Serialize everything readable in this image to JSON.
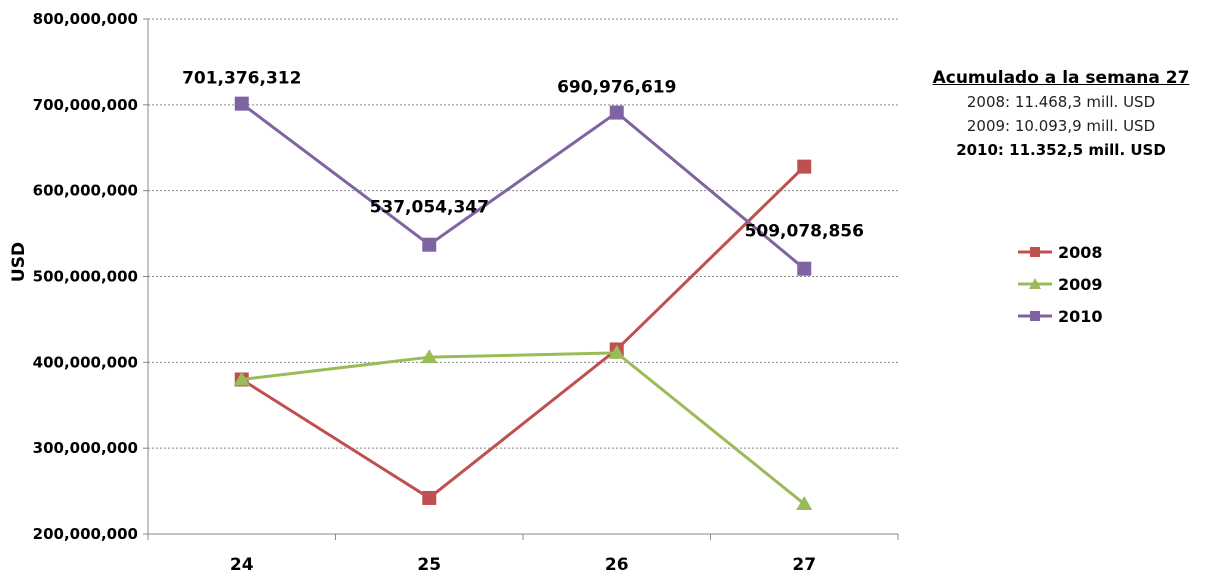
{
  "chart_data": {
    "type": "line",
    "title": "",
    "xlabel": "",
    "ylabel": "USD",
    "categories": [
      "24",
      "25",
      "26",
      "27"
    ],
    "ylim": [
      200000000,
      800000000
    ],
    "yticks": [
      "200,000,000",
      "300,000,000",
      "400,000,000",
      "500,000,000",
      "600,000,000",
      "700,000,000",
      "800,000,000"
    ],
    "ytick_values": [
      200000000,
      300000000,
      400000000,
      500000000,
      600000000,
      700000000,
      800000000
    ],
    "grid": "horizontal dotted",
    "legend": "right",
    "series": [
      {
        "name": "2008",
        "color": "#c0504d",
        "marker": "square",
        "values": [
          380000000,
          242000000,
          415000000,
          628000000
        ]
      },
      {
        "name": "2009",
        "color": "#9bbb59",
        "marker": "triangle",
        "values": [
          380000000,
          406000000,
          411000000,
          235000000
        ]
      },
      {
        "name": "2010",
        "color": "#8064a2",
        "marker": "square",
        "values": [
          701376312,
          537054347,
          690976619,
          509078856
        ],
        "data_labels": [
          "701,376,312",
          "537,054,347",
          "690,976,619",
          "509,078,856"
        ]
      }
    ],
    "annotation": {
      "title": "Acumulado a la semana 27",
      "lines": [
        "2008: 11.468,3 mill. USD",
        "2009: 10.093,9 mill. USD",
        "2010: 11.352,5 mill. USD"
      ]
    }
  }
}
